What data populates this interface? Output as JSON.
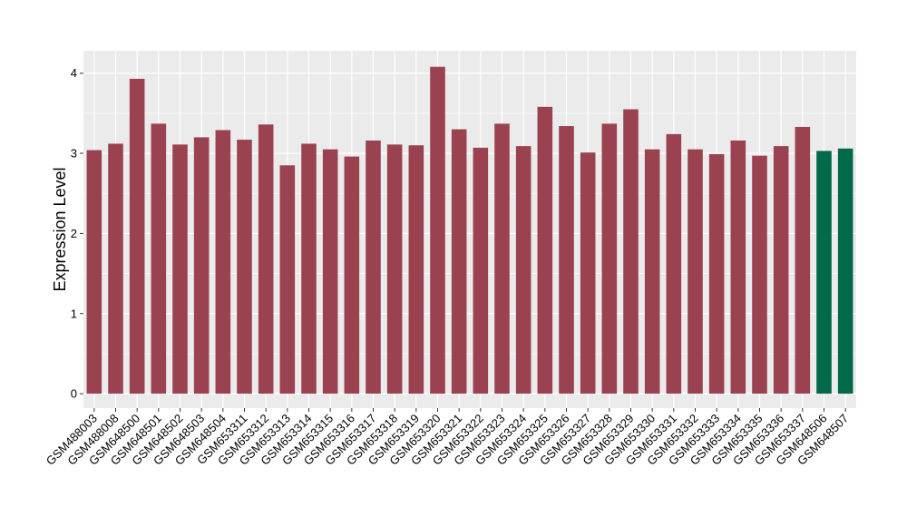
{
  "chart_data": {
    "type": "bar",
    "title": "",
    "xlabel": "",
    "ylabel": "Expression Level",
    "ylim": [
      -0.18,
      4.28
    ],
    "yticks": [
      0,
      1,
      2,
      3,
      4
    ],
    "grid": true,
    "background": "#ebebeb",
    "categories": [
      "GSM488003",
      "GSM488008",
      "GSM648500",
      "GSM648501",
      "GSM648502",
      "GSM648503",
      "GSM648504",
      "GSM653311",
      "GSM653312",
      "GSM653313",
      "GSM653314",
      "GSM653315",
      "GSM653316",
      "GSM653317",
      "GSM653318",
      "GSM653319",
      "GSM653320",
      "GSM653321",
      "GSM653322",
      "GSM653323",
      "GSM653324",
      "GSM653325",
      "GSM653326",
      "GSM653327",
      "GSM653328",
      "GSM653329",
      "GSM653330",
      "GSM653331",
      "GSM653332",
      "GSM653333",
      "GSM653334",
      "GSM653335",
      "GSM653336",
      "GSM653337",
      "GSM648506",
      "GSM648507"
    ],
    "values": [
      3.04,
      3.12,
      3.93,
      3.37,
      3.11,
      3.2,
      3.29,
      3.17,
      3.36,
      2.85,
      3.12,
      3.05,
      2.96,
      3.16,
      3.11,
      3.1,
      4.08,
      3.3,
      3.07,
      3.37,
      3.09,
      3.58,
      3.34,
      3.01,
      3.37,
      3.55,
      3.05,
      3.24,
      3.05,
      2.99,
      3.16,
      2.97,
      3.09,
      3.33,
      3.03,
      3.06
    ],
    "groups": [
      "a",
      "a",
      "a",
      "a",
      "a",
      "a",
      "a",
      "a",
      "a",
      "a",
      "a",
      "a",
      "a",
      "a",
      "a",
      "a",
      "a",
      "a",
      "a",
      "a",
      "a",
      "a",
      "a",
      "a",
      "a",
      "a",
      "a",
      "a",
      "a",
      "a",
      "a",
      "a",
      "a",
      "a",
      "b",
      "b"
    ],
    "colors": {
      "a": "#9a4250",
      "b": "#00694a"
    }
  }
}
